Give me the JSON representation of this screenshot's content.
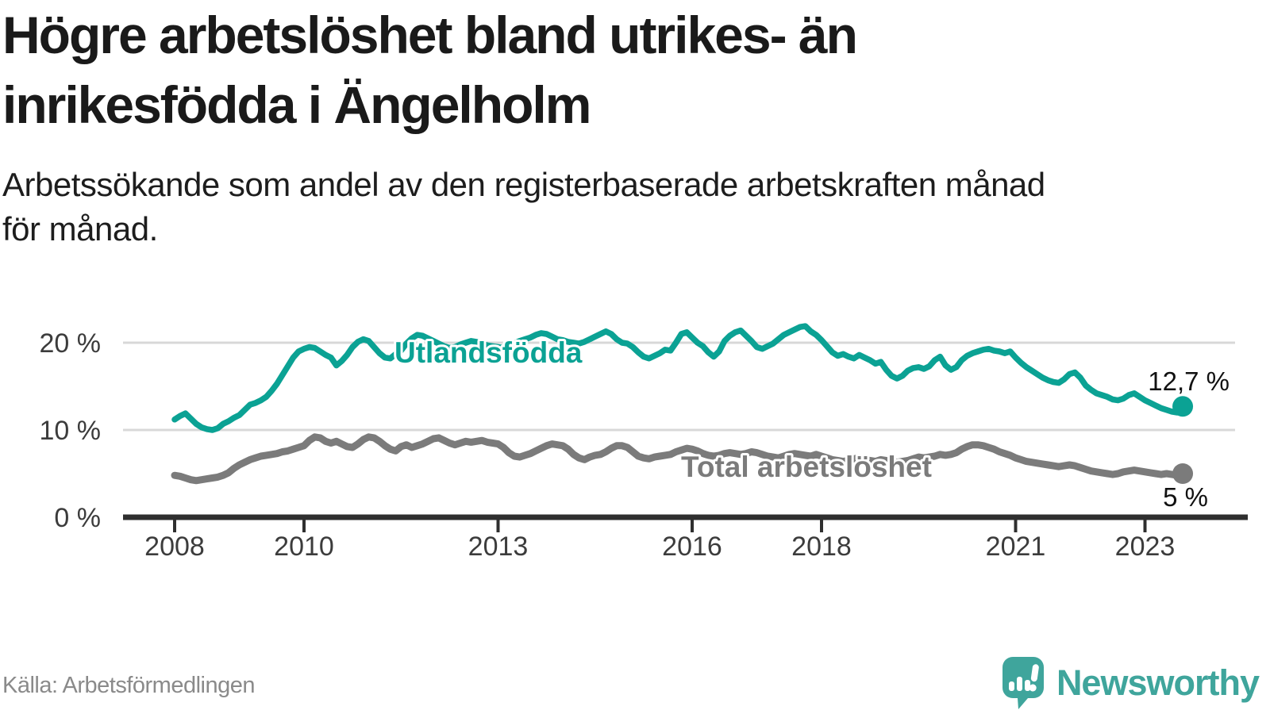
{
  "header": {
    "title_line1": "Högre arbetslöshet bland utrikes- än",
    "title_line2": "inrikesfödda i Ängelholm",
    "subtitle_line1": "Arbetssökande som andel av den registerbaserade arbetskraften månad",
    "subtitle_line2": "för månad."
  },
  "footer": {
    "source": "Källa: Arbetsförmedlingen",
    "brand": "Newsworthy"
  },
  "colors": {
    "accent_teal": "#0ba294",
    "line_gray": "#7b7b7b",
    "axis": "#2f2f2f",
    "grid": "#d8d8d8",
    "annotation": "#111111",
    "brand_teal": "#3fa59c"
  },
  "chart_data": {
    "type": "line",
    "title": "Högre arbetslöshet bland utrikes- än inrikesfödda i Ängelholm",
    "subtitle": "Arbetssökande som andel av den registerbaserade arbetskraften månad för månad.",
    "frequency": "monthly",
    "x_start_year": 2008,
    "x_end": "2023-08",
    "grid": true,
    "legend_position": "inline-labels",
    "x_axis": {
      "ticks": [
        {
          "year": 2008,
          "label": "2008"
        },
        {
          "year": 2010,
          "label": "2010"
        },
        {
          "year": 2013,
          "label": "2013"
        },
        {
          "year": 2016,
          "label": "2016"
        },
        {
          "year": 2018,
          "label": "2018"
        },
        {
          "year": 2021,
          "label": "2021"
        },
        {
          "year": 2023,
          "label": "2023"
        }
      ]
    },
    "y_axis": {
      "unit": "%",
      "range": [
        0,
        23
      ],
      "ticks": [
        {
          "value": 0,
          "label": "0 %"
        },
        {
          "value": 10,
          "label": "10 %"
        },
        {
          "value": 20,
          "label": "20 %"
        }
      ],
      "gridlines": [
        10,
        20
      ]
    },
    "series": [
      {
        "name": "Utlandsfödda",
        "color": "#0ba294",
        "end_label": "12,7 %",
        "last_value": 12.7,
        "values": [
          11.2,
          11.6,
          11.9,
          11.3,
          10.7,
          10.3,
          10.1,
          10.0,
          10.2,
          10.7,
          11.0,
          11.4,
          11.7,
          12.3,
          12.9,
          13.1,
          13.4,
          13.8,
          14.5,
          15.3,
          16.3,
          17.3,
          18.3,
          19.0,
          19.3,
          19.5,
          19.4,
          19.0,
          18.6,
          18.3,
          17.4,
          17.9,
          18.6,
          19.5,
          20.1,
          20.4,
          20.2,
          19.5,
          18.8,
          18.3,
          18.2,
          18.7,
          19.1,
          19.9,
          20.5,
          20.9,
          20.8,
          20.5,
          20.2,
          19.9,
          19.6,
          19.4,
          19.5,
          19.8,
          20.0,
          20.2,
          20.1,
          19.9,
          19.7,
          19.6,
          19.5,
          19.4,
          19.6,
          19.9,
          20.2,
          20.4,
          20.6,
          20.9,
          21.1,
          21.0,
          20.7,
          20.4,
          20.3,
          20.1,
          20.0,
          19.9,
          20.1,
          20.4,
          20.7,
          21.0,
          21.3,
          21.0,
          20.4,
          20.0,
          19.9,
          19.5,
          18.9,
          18.4,
          18.2,
          18.5,
          18.8,
          19.2,
          19.1,
          20.0,
          21.0,
          21.2,
          20.6,
          20.0,
          19.6,
          18.9,
          18.4,
          19.0,
          20.2,
          20.8,
          21.2,
          21.4,
          20.8,
          20.2,
          19.5,
          19.3,
          19.6,
          19.9,
          20.4,
          20.9,
          21.2,
          21.5,
          21.8,
          21.9,
          21.3,
          20.9,
          20.3,
          19.6,
          18.9,
          18.5,
          18.7,
          18.4,
          18.2,
          18.6,
          18.3,
          18.0,
          17.6,
          17.8,
          16.9,
          16.2,
          15.9,
          16.2,
          16.8,
          17.1,
          17.2,
          17.0,
          17.3,
          18.0,
          18.4,
          17.4,
          16.9,
          17.2,
          18.0,
          18.5,
          18.8,
          19.0,
          19.2,
          19.3,
          19.1,
          19.0,
          18.8,
          19.0,
          18.3,
          17.7,
          17.2,
          16.8,
          16.4,
          16.0,
          15.7,
          15.5,
          15.4,
          15.8,
          16.4,
          16.6,
          16.0,
          15.1,
          14.6,
          14.2,
          14.0,
          13.8,
          13.5,
          13.4,
          13.6,
          14.0,
          14.2,
          13.8,
          13.4,
          13.1,
          12.8,
          12.5,
          12.3,
          12.1,
          12.0,
          12.7
        ]
      },
      {
        "name": "Total arbetslöshet",
        "color": "#7b7b7b",
        "end_label": "5 %",
        "last_value": 5,
        "values": [
          4.8,
          4.7,
          4.5,
          4.3,
          4.2,
          4.3,
          4.4,
          4.5,
          4.6,
          4.8,
          5.1,
          5.6,
          6.0,
          6.3,
          6.6,
          6.8,
          7.0,
          7.1,
          7.2,
          7.3,
          7.5,
          7.6,
          7.8,
          8.0,
          8.2,
          8.8,
          9.2,
          9.1,
          8.7,
          8.5,
          8.7,
          8.4,
          8.1,
          8.0,
          8.4,
          8.9,
          9.2,
          9.1,
          8.7,
          8.2,
          7.8,
          7.6,
          8.1,
          8.3,
          8.0,
          8.2,
          8.4,
          8.7,
          9.0,
          9.1,
          8.8,
          8.5,
          8.3,
          8.5,
          8.7,
          8.6,
          8.7,
          8.8,
          8.6,
          8.5,
          8.4,
          8.0,
          7.4,
          7.0,
          6.9,
          7.1,
          7.3,
          7.6,
          7.9,
          8.2,
          8.4,
          8.3,
          8.2,
          7.8,
          7.2,
          6.8,
          6.6,
          6.9,
          7.1,
          7.2,
          7.5,
          7.9,
          8.2,
          8.2,
          8.0,
          7.5,
          7.0,
          6.8,
          6.7,
          6.9,
          7.0,
          7.1,
          7.2,
          7.5,
          7.7,
          7.9,
          7.8,
          7.6,
          7.3,
          7.1,
          7.0,
          7.1,
          7.3,
          7.4,
          7.3,
          7.2,
          7.3,
          7.5,
          7.4,
          7.2,
          7.0,
          6.9,
          6.8,
          7.0,
          7.2,
          7.3,
          7.2,
          7.1,
          7.0,
          7.2,
          7.0,
          6.8,
          6.6,
          6.5,
          6.4,
          6.5,
          6.7,
          6.8,
          6.6,
          6.5,
          6.4,
          6.6,
          6.5,
          6.4,
          6.3,
          6.4,
          6.5,
          6.7,
          6.9,
          6.8,
          6.9,
          7.0,
          7.2,
          7.1,
          7.2,
          7.4,
          7.8,
          8.1,
          8.3,
          8.3,
          8.2,
          8.0,
          7.8,
          7.5,
          7.3,
          7.1,
          6.8,
          6.6,
          6.4,
          6.3,
          6.2,
          6.1,
          6.0,
          5.9,
          5.8,
          5.9,
          6.0,
          5.9,
          5.7,
          5.5,
          5.3,
          5.2,
          5.1,
          5.0,
          4.9,
          5.0,
          5.2,
          5.3,
          5.4,
          5.3,
          5.2,
          5.1,
          5.0,
          4.9,
          5.0,
          4.9,
          4.8,
          5.0
        ]
      }
    ]
  }
}
